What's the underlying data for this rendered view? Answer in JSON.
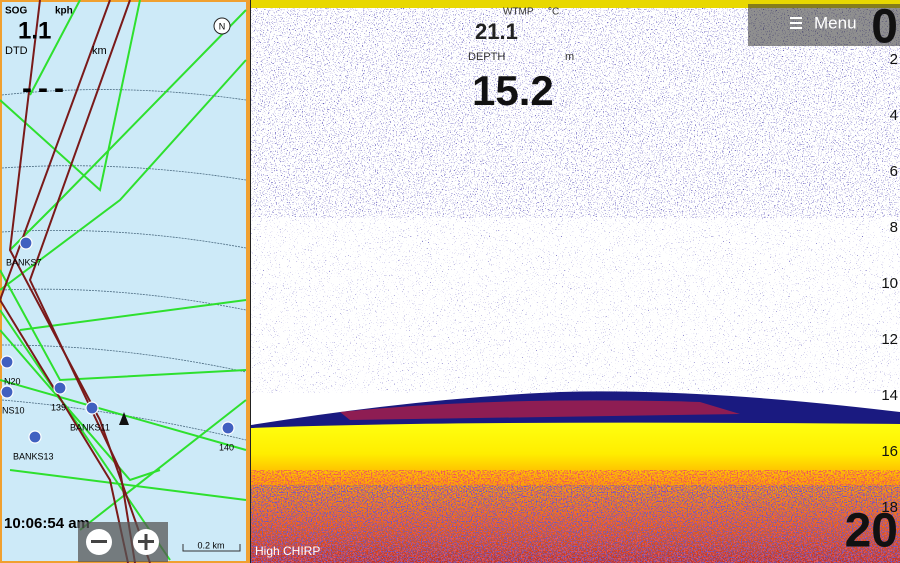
{
  "map": {
    "sog_label": "SOG",
    "sog_unit": "kph",
    "sog_value": "1.1",
    "dtd_label": "DTD",
    "dtd_unit": "km",
    "dtd_value": "---",
    "north": "N",
    "time": "10:06:54 am",
    "scale": "0.2 km",
    "waypoints": [
      "BANKS7",
      "N20",
      "NS10",
      "139",
      "BANKS11",
      "BANKS13",
      "140"
    ]
  },
  "sonar": {
    "wtmp_label": "WTMP",
    "wtmp_unit": "°C",
    "wtmp_value": "21.1",
    "depth_label": "DEPTH",
    "depth_unit": "m",
    "depth_value": "15.2",
    "menu": "Menu",
    "range_top": "0",
    "range_bottom": "20",
    "depth_scale": [
      "2",
      "4",
      "6",
      "8",
      "10",
      "12",
      "14",
      "16",
      "18"
    ],
    "mode": "High CHIRP"
  }
}
